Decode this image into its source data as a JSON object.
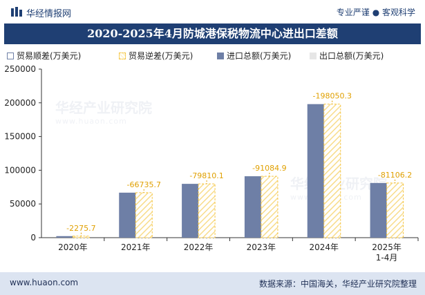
{
  "header": {
    "brand": "华经情报网",
    "tagline": "专业严谨 ● 客观科学"
  },
  "footer": {
    "website": "www.huaon.com",
    "source": "数据来源：中国海关，华经产业研究院整理"
  },
  "watermark": {
    "text": "华经产业研究院",
    "url": "www.huaon.com"
  },
  "colors": {
    "brand_navy": "#1f3f73",
    "import_bar": "#6e7fa6",
    "balance_bar": "#f5c542",
    "label_color": "#e0a000",
    "footer_bg": "#dce4f1"
  },
  "chart_data": {
    "type": "bar",
    "title": "2020-2025年4月防城港保税物流中心进出口差额",
    "categories": [
      "2020年",
      "2021年",
      "2022年",
      "2023年",
      "2024年",
      "2025年\n1-4月"
    ],
    "ylim": [
      0,
      250000
    ],
    "yticks": [
      0,
      50000,
      100000,
      150000,
      200000,
      250000
    ],
    "legend_position": "top-left",
    "legend": [
      "贸易顺差(万美元)",
      "贸易逆差(万美元)",
      "进口总额(万美元)",
      "出口总额(万美元)"
    ],
    "series": [
      {
        "name": "贸易顺差(万美元)",
        "values": [
          0,
          0,
          0,
          0,
          0,
          0
        ]
      },
      {
        "name": "贸易逆差(万美元)",
        "values": [
          2275.7,
          66735.7,
          79810.1,
          91084.9,
          198050.3,
          81106.2
        ]
      },
      {
        "name": "进口总额(万美元)",
        "values": [
          2275.7,
          66735.7,
          79810.1,
          91084.9,
          198050.3,
          81106.2
        ]
      },
      {
        "name": "出口总额(万美元)",
        "values": [
          0,
          0,
          0,
          0,
          0,
          0
        ]
      }
    ],
    "data_labels": [
      "-2275.7",
      "-66735.7",
      "-79810.1",
      "-91084.9",
      "-198050.3",
      "-81106.2"
    ]
  }
}
